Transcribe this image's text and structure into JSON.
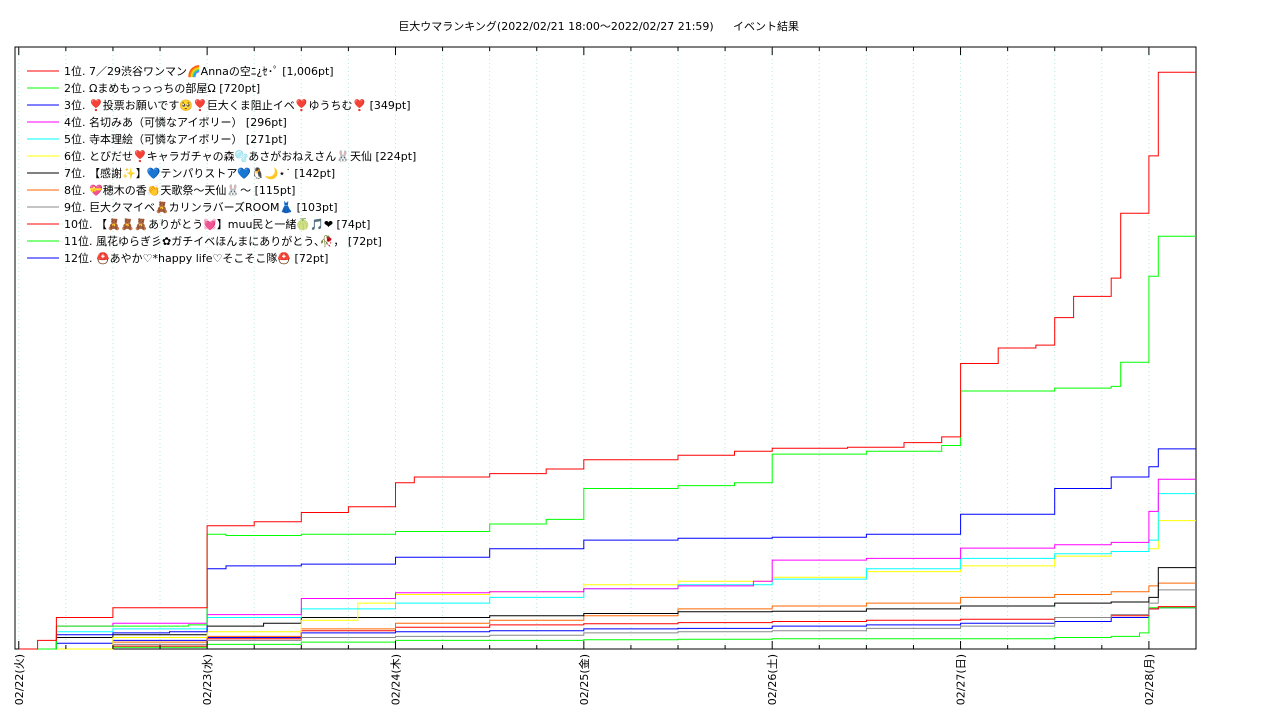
{
  "chart_data": {
    "type": "line",
    "title": "巨大ウマランキング(2022/02/21 18:00〜2022/02/27 21:59)",
    "subtitle": "イベント結果",
    "xlabel": "",
    "ylabel": "",
    "x_ticks": [
      "02/22(火)",
      "02/23(水)",
      "02/24(木)",
      "02/25(金)",
      "02/26(土)",
      "02/27(日)",
      "02/28(月)"
    ],
    "x_range_days": [
      -0.02,
      6.25
    ],
    "y_range": [
      0,
      1050
    ],
    "grid": "vertical-dotted",
    "legend_position": "top-left",
    "series": [
      {
        "name": "1位. 7／29渋谷ワンマン🌈Annaの空ﾆ¿ｾ･ﾟ [1,006pt]",
        "color": "#ff0000",
        "points": [
          [
            0,
            0
          ],
          [
            0.1,
            15
          ],
          [
            0.2,
            55
          ],
          [
            0.5,
            72
          ],
          [
            1.0,
            120
          ],
          [
            1.0,
            215
          ],
          [
            1.25,
            222
          ],
          [
            1.5,
            238
          ],
          [
            1.75,
            248
          ],
          [
            2.0,
            290
          ],
          [
            2.1,
            300
          ],
          [
            2.5,
            306
          ],
          [
            2.8,
            314
          ],
          [
            3.0,
            330
          ],
          [
            3.5,
            338
          ],
          [
            3.8,
            345
          ],
          [
            4.0,
            350
          ],
          [
            4.4,
            352
          ],
          [
            4.7,
            360
          ],
          [
            4.9,
            370
          ],
          [
            5.0,
            498
          ],
          [
            5.2,
            525
          ],
          [
            5.4,
            530
          ],
          [
            5.5,
            578
          ],
          [
            5.6,
            615
          ],
          [
            5.8,
            647
          ],
          [
            5.85,
            760
          ],
          [
            6.0,
            860
          ],
          [
            6.05,
            1006
          ],
          [
            6.25,
            1006
          ]
        ]
      },
      {
        "name": "2位. Ωまめもっっっちの部屋Ω [720pt]",
        "color": "#00ff00",
        "points": [
          [
            0,
            0
          ],
          [
            0.2,
            40
          ],
          [
            0.9,
            42
          ],
          [
            1.0,
            200
          ],
          [
            1.1,
            198
          ],
          [
            1.5,
            200
          ],
          [
            2.0,
            205
          ],
          [
            2.5,
            218
          ],
          [
            2.8,
            226
          ],
          [
            3.0,
            250
          ],
          [
            3.0,
            280
          ],
          [
            3.5,
            285
          ],
          [
            3.8,
            290
          ],
          [
            4.0,
            340
          ],
          [
            4.5,
            345
          ],
          [
            4.9,
            355
          ],
          [
            5.0,
            450
          ],
          [
            5.5,
            455
          ],
          [
            5.8,
            458
          ],
          [
            5.85,
            500
          ],
          [
            6.0,
            650
          ],
          [
            6.05,
            720
          ],
          [
            6.25,
            720
          ]
        ]
      },
      {
        "name": "3位. ❣️投票お願いです🥺❣️巨大くま阻止イベ❣️ゆうちむ❣️ [349pt]",
        "color": "#0000ff",
        "points": [
          [
            0,
            0
          ],
          [
            0.2,
            25
          ],
          [
            0.5,
            28
          ],
          [
            0.8,
            30
          ],
          [
            1.0,
            140
          ],
          [
            1.1,
            145
          ],
          [
            1.5,
            148
          ],
          [
            2.0,
            160
          ],
          [
            2.5,
            175
          ],
          [
            3.0,
            190
          ],
          [
            3.5,
            193
          ],
          [
            4.0,
            195
          ],
          [
            4.5,
            200
          ],
          [
            5.0,
            235
          ],
          [
            5.5,
            280
          ],
          [
            5.8,
            300
          ],
          [
            6.0,
            318
          ],
          [
            6.05,
            349
          ],
          [
            6.25,
            349
          ]
        ]
      },
      {
        "name": "4位. 名切みあ（可憐なアイボリー） [296pt]",
        "color": "#ff00ff",
        "points": [
          [
            0,
            0
          ],
          [
            0.2,
            40
          ],
          [
            0.5,
            45
          ],
          [
            1.0,
            60
          ],
          [
            1.5,
            88
          ],
          [
            2.0,
            98
          ],
          [
            2.5,
            100
          ],
          [
            3.0,
            105
          ],
          [
            3.5,
            110
          ],
          [
            3.9,
            118
          ],
          [
            4.0,
            155
          ],
          [
            4.5,
            158
          ],
          [
            5.0,
            176
          ],
          [
            5.5,
            182
          ],
          [
            5.8,
            186
          ],
          [
            6.0,
            240
          ],
          [
            6.05,
            296
          ],
          [
            6.25,
            296
          ]
        ]
      },
      {
        "name": "5位. 寺本理絵（可憐なアイボリー） [271pt]",
        "color": "#00ffff",
        "points": [
          [
            0,
            0
          ],
          [
            0.2,
            30
          ],
          [
            0.5,
            35
          ],
          [
            1.0,
            55
          ],
          [
            1.5,
            70
          ],
          [
            2.0,
            80
          ],
          [
            2.5,
            90
          ],
          [
            3.0,
            105
          ],
          [
            3.5,
            112
          ],
          [
            4.0,
            122
          ],
          [
            4.5,
            140
          ],
          [
            5.0,
            158
          ],
          [
            5.5,
            166
          ],
          [
            5.8,
            170
          ],
          [
            6.0,
            190
          ],
          [
            6.05,
            271
          ],
          [
            6.25,
            271
          ]
        ]
      },
      {
        "name": "6位. とびだせ❣️キャラガチャの森🫧あさがおねえさん🐰天仙 [224pt]",
        "color": "#ffff00",
        "points": [
          [
            0,
            0
          ],
          [
            0.5,
            20
          ],
          [
            1.0,
            30
          ],
          [
            1.5,
            50
          ],
          [
            1.8,
            80
          ],
          [
            2.0,
            95
          ],
          [
            2.5,
            100
          ],
          [
            3.0,
            112
          ],
          [
            3.5,
            118
          ],
          [
            4.0,
            125
          ],
          [
            4.5,
            135
          ],
          [
            5.0,
            145
          ],
          [
            5.5,
            162
          ],
          [
            5.8,
            170
          ],
          [
            6.0,
            175
          ],
          [
            6.05,
            224
          ],
          [
            6.25,
            224
          ]
        ]
      },
      {
        "name": "7位. 【感謝✨】💙テンパりストア💙🐧🌙⋆˙ [142pt]",
        "color": "#000000",
        "points": [
          [
            0,
            0
          ],
          [
            0.2,
            20
          ],
          [
            0.5,
            25
          ],
          [
            1.0,
            40
          ],
          [
            1.3,
            45
          ],
          [
            1.5,
            55
          ],
          [
            2.0,
            55
          ],
          [
            2.5,
            58
          ],
          [
            3.0,
            62
          ],
          [
            3.5,
            65
          ],
          [
            4.0,
            66
          ],
          [
            4.5,
            70
          ],
          [
            5.0,
            75
          ],
          [
            5.5,
            80
          ],
          [
            5.8,
            82
          ],
          [
            6.0,
            90
          ],
          [
            6.05,
            142
          ],
          [
            6.25,
            142
          ]
        ]
      },
      {
        "name": "8位. 💝穂木の香👏天歌祭〜天仙🐰〜 [115pt]",
        "color": "#ff6600",
        "points": [
          [
            0,
            0
          ],
          [
            0.5,
            12
          ],
          [
            1.0,
            22
          ],
          [
            1.5,
            35
          ],
          [
            2.0,
            45
          ],
          [
            2.5,
            50
          ],
          [
            3.0,
            58
          ],
          [
            3.5,
            70
          ],
          [
            4.0,
            75
          ],
          [
            4.5,
            80
          ],
          [
            5.0,
            90
          ],
          [
            5.5,
            95
          ],
          [
            5.8,
            100
          ],
          [
            6.0,
            110
          ],
          [
            6.05,
            115
          ],
          [
            6.25,
            115
          ]
        ]
      },
      {
        "name": "9位. 巨大クマイベ🧸カリンラバーズROOM👗 [103pt]",
        "color": "#888888",
        "points": [
          [
            0,
            0
          ],
          [
            0.5,
            8
          ],
          [
            1.0,
            15
          ],
          [
            1.5,
            20
          ],
          [
            2.0,
            22
          ],
          [
            2.5,
            24
          ],
          [
            3.0,
            28
          ],
          [
            3.5,
            30
          ],
          [
            4.0,
            32
          ],
          [
            4.5,
            36
          ],
          [
            5.0,
            40
          ],
          [
            5.5,
            55
          ],
          [
            5.8,
            60
          ],
          [
            6.0,
            80
          ],
          [
            6.05,
            103
          ],
          [
            6.25,
            103
          ]
        ]
      },
      {
        "name": "10位. 【🧸🧸🧸ありがとう💓】muu民と一緒🍈🎵❤ [74pt]",
        "color": "#ff0000",
        "points": [
          [
            0,
            0
          ],
          [
            0.5,
            5
          ],
          [
            1.0,
            18
          ],
          [
            1.5,
            32
          ],
          [
            2.0,
            38
          ],
          [
            2.5,
            42
          ],
          [
            3.0,
            44
          ],
          [
            3.5,
            46
          ],
          [
            4.0,
            48
          ],
          [
            4.5,
            50
          ],
          [
            5.0,
            52
          ],
          [
            5.5,
            55
          ],
          [
            5.8,
            58
          ],
          [
            6.0,
            70
          ],
          [
            6.05,
            74
          ],
          [
            6.25,
            74
          ]
        ]
      },
      {
        "name": "11位. 風花ゆらぎ彡✿ガチイベほんまにありがとう､🥀， [72pt]",
        "color": "#00ff00",
        "points": [
          [
            0,
            0
          ],
          [
            0.5,
            3
          ],
          [
            1.0,
            8
          ],
          [
            1.5,
            12
          ],
          [
            2.0,
            15
          ],
          [
            2.5,
            15
          ],
          [
            3.0,
            16
          ],
          [
            3.5,
            17
          ],
          [
            4.0,
            18
          ],
          [
            4.5,
            18
          ],
          [
            5.0,
            18
          ],
          [
            5.5,
            20
          ],
          [
            5.8,
            22
          ],
          [
            5.95,
            28
          ],
          [
            6.0,
            72
          ],
          [
            6.25,
            72
          ]
        ]
      },
      {
        "name": "12位. ⛑️あやか♡*happy life♡そこそこ隊⛑️ [72pt]",
        "color": "#0000ff",
        "points": [
          [
            0,
            0
          ],
          [
            0.2,
            10
          ],
          [
            0.5,
            15
          ],
          [
            1.0,
            20
          ],
          [
            1.5,
            28
          ],
          [
            2.0,
            30
          ],
          [
            2.5,
            32
          ],
          [
            3.0,
            35
          ],
          [
            3.5,
            36
          ],
          [
            4.0,
            40
          ],
          [
            4.5,
            42
          ],
          [
            5.0,
            45
          ],
          [
            5.5,
            48
          ],
          [
            5.8,
            55
          ],
          [
            6.0,
            70
          ],
          [
            6.05,
            72
          ],
          [
            6.25,
            72
          ]
        ]
      }
    ]
  }
}
